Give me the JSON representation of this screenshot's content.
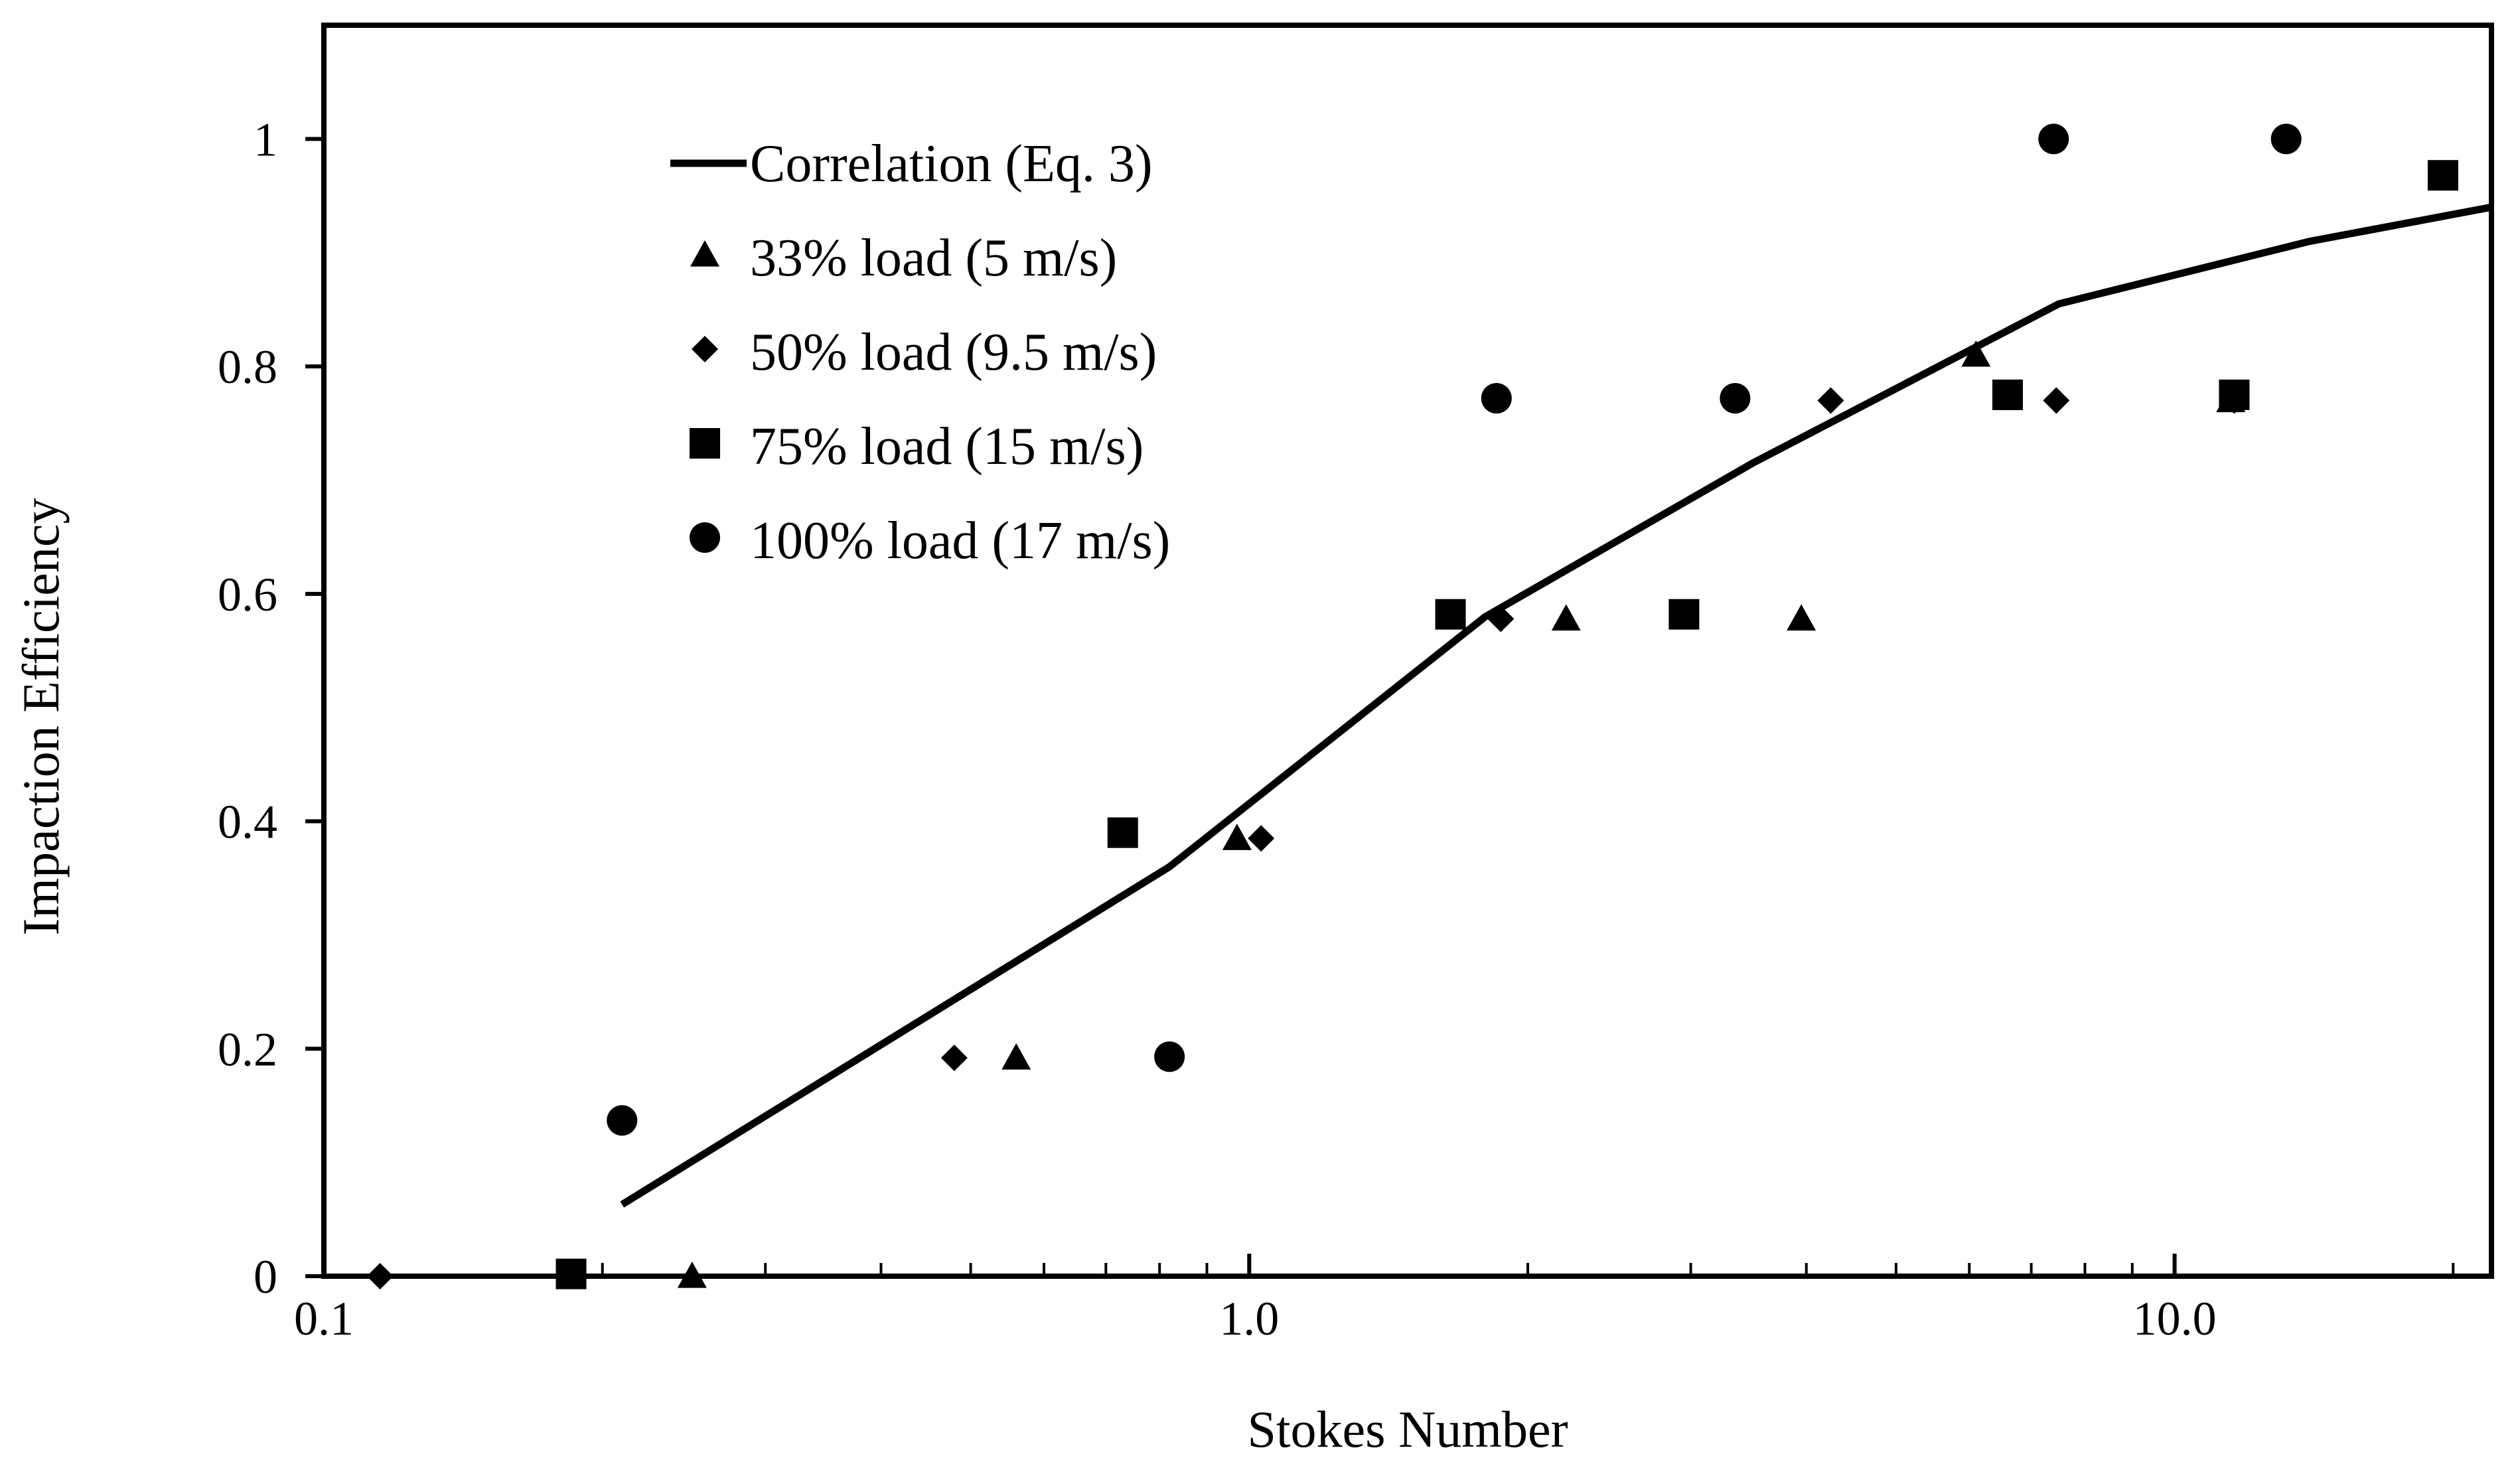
{
  "chart_data": {
    "type": "scatter",
    "title": "",
    "xlabel": "Stokes Number",
    "ylabel": "Impaction Efficiency",
    "xscale": "log",
    "xlim": [
      0.1,
      22
    ],
    "ylim": [
      0,
      1.1
    ],
    "x_ticks": [
      0.1,
      1.0,
      10.0
    ],
    "x_tick_labels": [
      "0.1",
      "1.0",
      "10.0"
    ],
    "y_ticks": [
      0,
      0.2,
      0.4,
      0.6,
      0.8,
      1
    ],
    "y_tick_labels": [
      "0",
      "0.2",
      "0.4",
      "0.6",
      "0.8",
      "1"
    ],
    "grid": false,
    "legend_position": "top-left",
    "series": [
      {
        "name": "Correlation (Eq. 3)",
        "kind": "line",
        "color": "#000000",
        "points": [
          [
            0.21,
            0.063
          ],
          [
            0.82,
            0.36
          ],
          [
            1.8,
            0.58
          ],
          [
            3.5,
            0.715
          ],
          [
            7.5,
            0.855
          ],
          [
            14,
            0.91
          ],
          [
            22,
            0.94
          ]
        ]
      },
      {
        "name": "33% load (5 m/s)",
        "kind": "marker",
        "marker": "triangle",
        "color": "#000000",
        "points": [
          [
            0.25,
            0.0
          ],
          [
            0.56,
            0.192
          ],
          [
            0.97,
            0.385
          ],
          [
            2.2,
            0.578
          ],
          [
            3.95,
            0.578
          ],
          [
            6.1,
            0.81
          ],
          [
            11.5,
            0.77
          ]
        ]
      },
      {
        "name": "50% load (9.5 m/s)",
        "kind": "marker",
        "marker": "diamond",
        "color": "#000000",
        "points": [
          [
            0.115,
            0.0
          ],
          [
            0.48,
            0.192
          ],
          [
            1.03,
            0.385
          ],
          [
            1.87,
            0.578
          ],
          [
            4.25,
            0.77
          ],
          [
            7.45,
            0.77
          ],
          [
            11.6,
            0.77
          ]
        ]
      },
      {
        "name": "75% load (15 m/s)",
        "kind": "marker",
        "marker": "square",
        "color": "#000000",
        "points": [
          [
            0.185,
            0.002
          ],
          [
            0.73,
            0.39
          ],
          [
            1.65,
            0.582
          ],
          [
            2.95,
            0.582
          ],
          [
            6.6,
            0.775
          ],
          [
            11.6,
            0.775
          ],
          [
            19.5,
            0.968
          ]
        ]
      },
      {
        "name": "100% load (17 m/s)",
        "kind": "marker",
        "marker": "circle",
        "color": "#000000",
        "points": [
          [
            0.21,
            0.137
          ],
          [
            0.82,
            0.193
          ],
          [
            1.85,
            0.772
          ],
          [
            3.35,
            0.772
          ],
          [
            7.4,
            1.0
          ],
          [
            13.2,
            1.0
          ]
        ]
      }
    ]
  }
}
